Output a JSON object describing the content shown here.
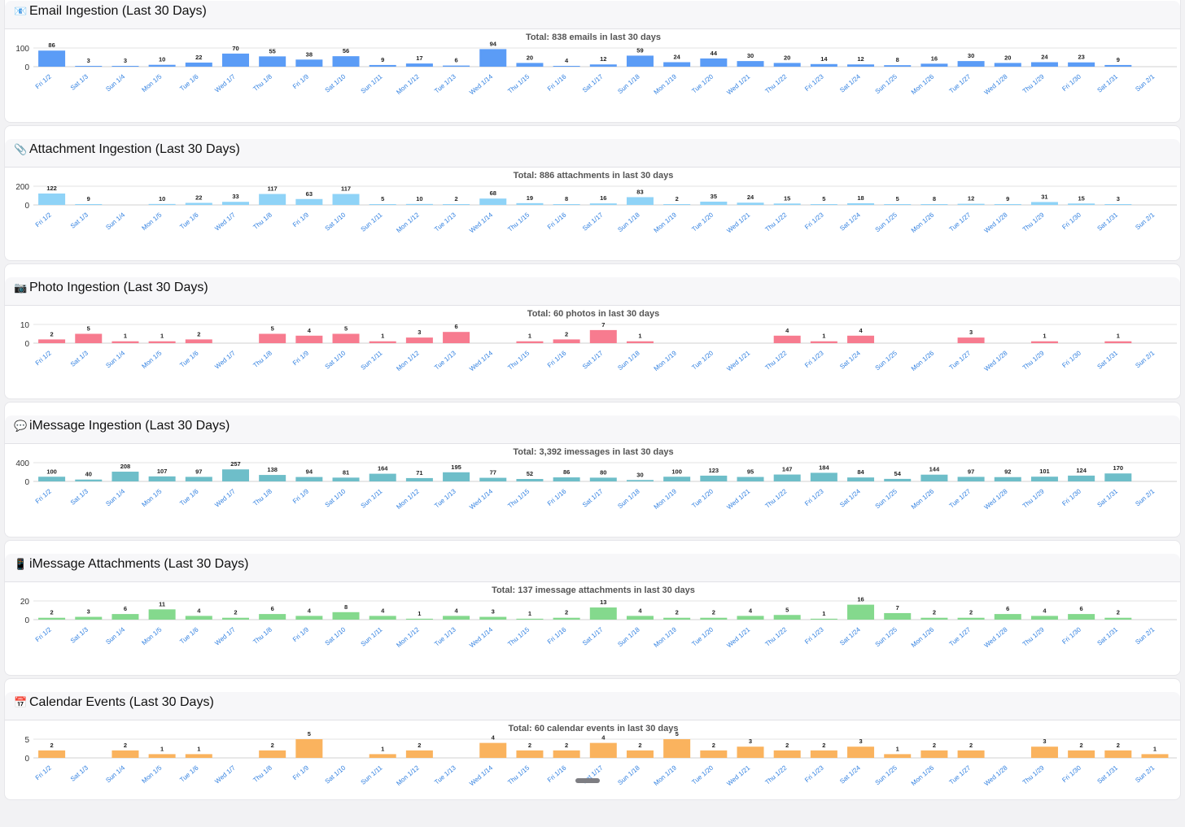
{
  "days": [
    "Fri 1/2",
    "Sat 1/3",
    "Sun 1/4",
    "Mon 1/5",
    "Tue 1/6",
    "Wed 1/7",
    "Thu 1/8",
    "Fri 1/9",
    "Sat 1/10",
    "Sun 1/11",
    "Mon 1/12",
    "Tue 1/13",
    "Wed 1/14",
    "Thu 1/15",
    "Fri 1/16",
    "Sat 1/17",
    "Sun 1/18",
    "Mon 1/19",
    "Tue 1/20",
    "Wed 1/21",
    "Thu 1/22",
    "Fri 1/23",
    "Sat 1/24",
    "Sun 1/25",
    "Mon 1/26",
    "Tue 1/27",
    "Wed 1/28",
    "Thu 1/29",
    "Fri 1/30",
    "Sat 1/31",
    "Sun 2/1"
  ],
  "panels": [
    {
      "icon": "📧",
      "title": "Email Ingestion (Last 30 Days)"
    },
    {
      "icon": "📎",
      "title": "Attachment Ingestion (Last 30 Days)"
    },
    {
      "icon": "📷",
      "title": "Photo Ingestion (Last 30 Days)"
    },
    {
      "icon": "💬",
      "title": "iMessage Ingestion (Last 30 Days)"
    },
    {
      "icon": "📱",
      "title": "iMessage Attachments (Last 30 Days)"
    },
    {
      "icon": "📅",
      "title": "Calendar Events (Last 30 Days)"
    }
  ],
  "chart_data": [
    {
      "type": "bar",
      "title": "Total: 838 emails in last 30 days",
      "color": "#5b9cf6",
      "ylim": [
        0,
        100
      ],
      "yticks": [
        "100",
        "0"
      ],
      "values": [
        86,
        3,
        3,
        10,
        22,
        70,
        55,
        38,
        56,
        9,
        17,
        6,
        94,
        20,
        4,
        12,
        59,
        24,
        44,
        30,
        20,
        14,
        12,
        8,
        16,
        30,
        20,
        24,
        23,
        9,
        null
      ],
      "labels": [
        "86",
        "3",
        "3",
        "10",
        "22",
        "70",
        "55",
        "38",
        "56",
        "9",
        "17",
        "6",
        "94",
        "20",
        "4",
        "12",
        "59",
        "24",
        "44",
        "30",
        "20",
        "14",
        "12",
        "8",
        "16",
        "30",
        "20",
        "24",
        "23",
        "9",
        ""
      ]
    },
    {
      "type": "bar",
      "title": "Total: 886 attachments in last 30 days",
      "color": "#8fd3f7",
      "ylim": [
        0,
        200
      ],
      "yticks": [
        "200",
        "0"
      ],
      "values": [
        122,
        9,
        null,
        10,
        22,
        33,
        117,
        63,
        117,
        5,
        10,
        2,
        68,
        19,
        8,
        16,
        83,
        2,
        35,
        24,
        15,
        5,
        18,
        5,
        8,
        12,
        9,
        31,
        15,
        3,
        null
      ],
      "labels": [
        "122",
        "9",
        "",
        "10",
        "22",
        "33",
        "117",
        "63",
        "117",
        "5",
        "10",
        "2",
        "68",
        "19",
        "8",
        "16",
        "83",
        "2",
        "35",
        "24",
        "15",
        "5",
        "18",
        "5",
        "8",
        "12",
        "9",
        "31",
        "15",
        "3",
        ""
      ]
    },
    {
      "type": "bar",
      "title": "Total: 60 photos in last 30 days",
      "color": "#f77b8f",
      "ylim": [
        0,
        10
      ],
      "yticks": [
        "10",
        "0"
      ],
      "values": [
        2,
        5,
        1,
        1,
        2,
        null,
        5,
        4,
        5,
        1,
        3,
        6,
        null,
        1,
        2,
        7,
        1,
        null,
        null,
        null,
        4,
        1,
        4,
        null,
        null,
        3,
        null,
        1,
        null,
        1,
        null
      ],
      "labels": [
        "2",
        "5",
        "1",
        "1",
        "2",
        "",
        "5",
        "4",
        "5",
        "1",
        "3",
        "6",
        "",
        "1",
        "2",
        "7",
        "1",
        "",
        "",
        "",
        "4",
        "1",
        "4",
        "",
        "",
        "3",
        "",
        "1",
        "",
        "1",
        ""
      ]
    },
    {
      "type": "bar",
      "title": "Total: 3,392 imessages in last 30 days",
      "color": "#6ebec9",
      "ylim": [
        0,
        400
      ],
      "yticks": [
        "400",
        "0"
      ],
      "values": [
        100,
        40,
        208,
        107,
        97,
        257,
        138,
        94,
        81,
        164,
        71,
        195,
        77,
        52,
        86,
        80,
        30,
        100,
        123,
        95,
        147,
        184,
        84,
        54,
        144,
        97,
        92,
        101,
        124,
        170,
        null
      ],
      "labels": [
        "100",
        "40",
        "208",
        "107",
        "97",
        "257",
        "138",
        "94",
        "81",
        "164",
        "71",
        "195",
        "77",
        "52",
        "86",
        "80",
        "30",
        "100",
        "123",
        "95",
        "147",
        "184",
        "84",
        "54",
        "144",
        "97",
        "92",
        "101",
        "124",
        "170",
        ""
      ]
    },
    {
      "type": "bar",
      "title": "Total: 137 imessage attachments in last 30 days",
      "color": "#84d98d",
      "ylim": [
        0,
        20
      ],
      "yticks": [
        "20",
        "0"
      ],
      "values": [
        2,
        3,
        6,
        11,
        4,
        2,
        6,
        4,
        8,
        4,
        1,
        4,
        3,
        1,
        2,
        13,
        4,
        2,
        2,
        4,
        5,
        1,
        16,
        7,
        2,
        2,
        6,
        4,
        6,
        2,
        null
      ],
      "labels": [
        "2",
        "3",
        "6",
        "11",
        "4",
        "2",
        "6",
        "4",
        "8",
        "4",
        "1",
        "4",
        "3",
        "1",
        "2",
        "13",
        "4",
        "2",
        "2",
        "4",
        "5",
        "1",
        "16",
        "7",
        "2",
        "2",
        "6",
        "4",
        "6",
        "2",
        ""
      ]
    },
    {
      "type": "bar",
      "title": "Total: 60 calendar events in last 30 days",
      "color": "#fab35e",
      "ylim": [
        0,
        5
      ],
      "yticks": [
        "5",
        "0"
      ],
      "values": [
        2,
        null,
        2,
        1,
        1,
        null,
        2,
        5,
        null,
        1,
        2,
        null,
        4,
        2,
        2,
        4,
        2,
        5,
        2,
        3,
        2,
        2,
        3,
        1,
        2,
        2,
        null,
        3,
        2,
        2,
        1
      ],
      "labels": [
        "2",
        "",
        "2",
        "1",
        "1",
        "",
        "2",
        "5",
        "",
        "1",
        "2",
        "",
        "4",
        "2",
        "2",
        "4",
        "2",
        "5",
        "2",
        "3",
        "2",
        "2",
        "3",
        "1",
        "2",
        "2",
        "",
        "3",
        "2",
        "2",
        "1"
      ]
    }
  ]
}
